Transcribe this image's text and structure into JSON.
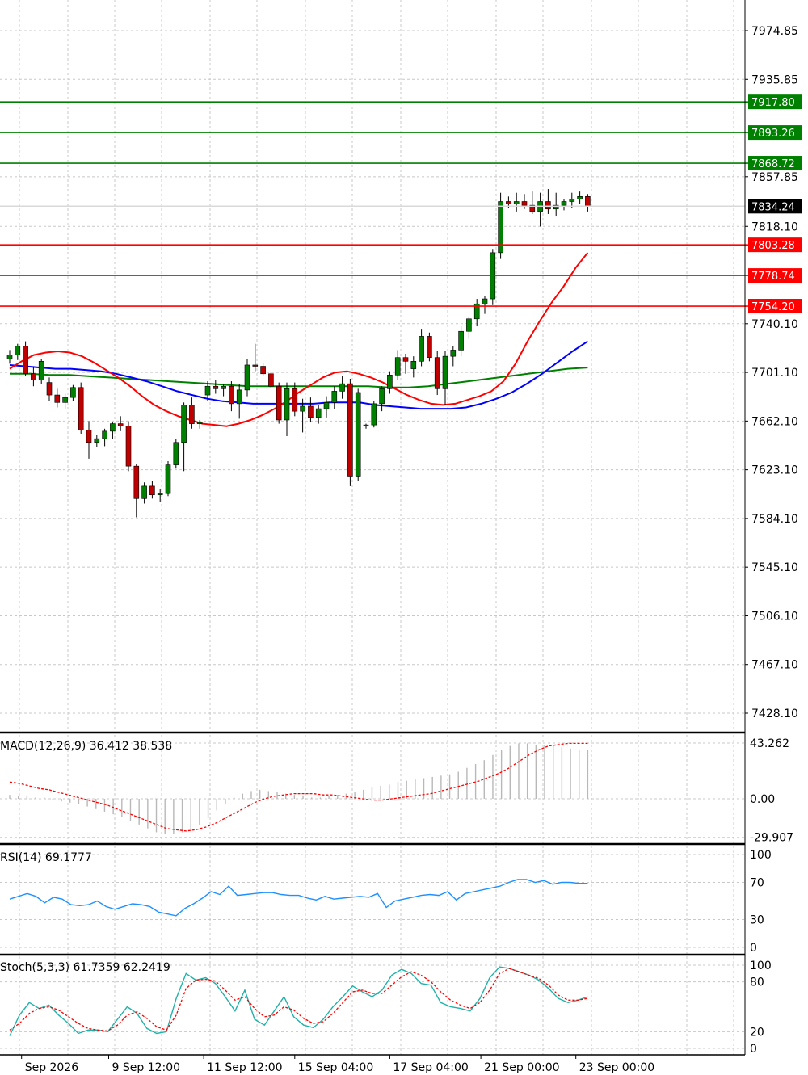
{
  "chart_data": {
    "type": "candlestick",
    "price_axis": {
      "ylim": [
        7405,
        8000
      ],
      "tick_labels": [
        "7974.85",
        "7935.85",
        "7857.85",
        "7818.10",
        "7740.10",
        "7701.10",
        "7662.10",
        "7623.10",
        "7584.10",
        "7545.10",
        "7506.10",
        "7467.10",
        "7428.10"
      ],
      "tick_values": [
        7974.85,
        7935.85,
        7857.85,
        7818.1,
        7740.1,
        7701.1,
        7662.1,
        7623.1,
        7584.1,
        7545.1,
        7506.1,
        7467.1,
        7428.1
      ]
    },
    "time_axis": {
      "labels": [
        "Sep 2026",
        "9 Sep 12:00",
        "11 Sep 12:00",
        "15 Sep 04:00",
        "17 Sep 04:00",
        "21 Sep 00:00",
        "23 Sep 00:00"
      ],
      "label_bar_index": [
        1.5,
        12.5,
        24.5,
        36,
        48,
        59.5,
        71.5
      ]
    },
    "current_price": {
      "value": 7834.24,
      "label": "7834.24",
      "color": "#000000"
    },
    "resistance_levels": [
      {
        "value": 7917.8,
        "label": "7917.80",
        "color": "#008000"
      },
      {
        "value": 7893.26,
        "label": "7893.26",
        "color": "#008000"
      },
      {
        "value": 7868.72,
        "label": "7868.72",
        "color": "#008000"
      }
    ],
    "support_levels": [
      {
        "value": 7803.28,
        "label": "7803.28",
        "color": "#ff0000"
      },
      {
        "value": 7778.74,
        "label": "7778.74",
        "color": "#ff0000"
      },
      {
        "value": 7754.2,
        "label": "7754.20",
        "color": "#ff0000"
      }
    ],
    "candles": [
      [
        7712,
        7719,
        7708,
        7715
      ],
      [
        7715,
        7724,
        7711,
        7722
      ],
      [
        7722,
        7726,
        7698,
        7700
      ],
      [
        7700,
        7706,
        7690,
        7695
      ],
      [
        7695,
        7712,
        7692,
        7710
      ],
      [
        7693,
        7697,
        7678,
        7683
      ],
      [
        7683,
        7688,
        7673,
        7677
      ],
      [
        7677,
        7684,
        7672,
        7681
      ],
      [
        7681,
        7691,
        7678,
        7689
      ],
      [
        7689,
        7693,
        7652,
        7655
      ],
      [
        7655,
        7662,
        7632,
        7645
      ],
      [
        7645,
        7651,
        7641,
        7648
      ],
      [
        7648,
        7656,
        7642,
        7654
      ],
      [
        7654,
        7661,
        7648,
        7660
      ],
      [
        7660,
        7666,
        7654,
        7658
      ],
      [
        7658,
        7662,
        7622,
        7626
      ],
      [
        7626,
        7628,
        7585,
        7600
      ],
      [
        7600,
        7613,
        7596,
        7610
      ],
      [
        7610,
        7614,
        7600,
        7603
      ],
      [
        7603,
        7608,
        7597,
        7604
      ],
      [
        7604,
        7630,
        7602,
        7627
      ],
      [
        7627,
        7648,
        7624,
        7645
      ],
      [
        7645,
        7677,
        7622,
        7675
      ],
      [
        7675,
        7681,
        7656,
        7660
      ],
      [
        7660,
        7663,
        7656,
        7661
      ],
      [
        7683,
        7694,
        7678,
        7690
      ],
      [
        7690,
        7695,
        7684,
        7688
      ],
      [
        7688,
        7692,
        7682,
        7690
      ],
      [
        7690,
        7694,
        7670,
        7676
      ],
      [
        7676,
        7692,
        7664,
        7687
      ],
      [
        7687,
        7712,
        7682,
        7707
      ],
      [
        7707,
        7724,
        7702,
        7706
      ],
      [
        7706,
        7709,
        7698,
        7700
      ],
      [
        7700,
        7702,
        7688,
        7690
      ],
      [
        7690,
        7693,
        7660,
        7663
      ],
      [
        7663,
        7693,
        7650,
        7688
      ],
      [
        7688,
        7693,
        7666,
        7670
      ],
      [
        7670,
        7680,
        7653,
        7674
      ],
      [
        7674,
        7681,
        7661,
        7665
      ],
      [
        7665,
        7675,
        7660,
        7672
      ],
      [
        7672,
        7682,
        7665,
        7677
      ],
      [
        7677,
        7690,
        7672,
        7686
      ],
      [
        7686,
        7698,
        7680,
        7692
      ],
      [
        7692,
        7696,
        7610,
        7618
      ],
      [
        7618,
        7688,
        7614,
        7685
      ],
      [
        7658,
        7660,
        7656,
        7659
      ],
      [
        7659,
        7678,
        7657,
        7676
      ],
      [
        7676,
        7690,
        7670,
        7688
      ],
      [
        7688,
        7702,
        7684,
        7699
      ],
      [
        7699,
        7719,
        7695,
        7713
      ],
      [
        7713,
        7716,
        7700,
        7710
      ],
      [
        7704,
        7714,
        7697,
        7710
      ],
      [
        7710,
        7736,
        7706,
        7730
      ],
      [
        7730,
        7733,
        7710,
        7713
      ],
      [
        7713,
        7718,
        7683,
        7688
      ],
      [
        7688,
        7718,
        7675,
        7714
      ],
      [
        7714,
        7722,
        7706,
        7719
      ],
      [
        7719,
        7738,
        7714,
        7734
      ],
      [
        7734,
        7746,
        7728,
        7744
      ],
      [
        7744,
        7760,
        7738,
        7756
      ],
      [
        7756,
        7762,
        7748,
        7760
      ],
      [
        7760,
        7800,
        7755,
        7797
      ],
      [
        7797,
        7845,
        7792,
        7838
      ],
      [
        7838,
        7842,
        7833,
        7836
      ],
      [
        7836,
        7845,
        7830,
        7838
      ],
      [
        7838,
        7844,
        7832,
        7835
      ],
      [
        7835,
        7846,
        7828,
        7830
      ],
      [
        7830,
        7845,
        7818,
        7838
      ],
      [
        7838,
        7848,
        7828,
        7832
      ],
      [
        7832,
        7845,
        7826,
        7835
      ],
      [
        7835,
        7840,
        7831,
        7838
      ],
      [
        7838,
        7845,
        7833,
        7840
      ],
      [
        7840,
        7846,
        7836,
        7842
      ],
      [
        7842,
        7844,
        7830,
        7834
      ]
    ],
    "ma_fast": [
      7704,
      7710,
      7715,
      7717,
      7718,
      7717,
      7714,
      7709,
      7703,
      7697,
      7690,
      7682,
      7675,
      7670,
      7666,
      7663,
      7660,
      7659,
      7658,
      7660,
      7663,
      7667,
      7672,
      7678,
      7685,
      7691,
      7697,
      7701,
      7702,
      7700,
      7697,
      7693,
      7688,
      7683,
      7679,
      7676,
      7675,
      7676,
      7679,
      7682,
      7686,
      7694,
      7708,
      7726,
      7742,
      7757,
      7770,
      7785,
      7797
    ],
    "ma_mid": [
      7707,
      7706,
      7705,
      7704,
      7704,
      7703,
      7702,
      7700,
      7697,
      7694,
      7690,
      7686,
      7683,
      7680,
      7678,
      7677,
      7676,
      7676,
      7676,
      7676,
      7676,
      7677,
      7677,
      7677,
      7675,
      7674,
      7673,
      7672,
      7672,
      7672,
      7673,
      7676,
      7680,
      7685,
      7692,
      7700,
      7709,
      7718,
      7726
    ],
    "ma_slow": [
      7700,
      7700,
      7699,
      7699,
      7698,
      7697,
      7696,
      7695,
      7694,
      7693,
      7692,
      7691,
      7690,
      7690,
      7690,
      7690,
      7690,
      7690,
      7690,
      7689,
      7689,
      7690,
      7692,
      7694,
      7696,
      7698,
      7700,
      7702,
      7704,
      7705
    ],
    "macd": {
      "title": "MACD(12,26,9) 36.412 38.538",
      "axis_labels": [
        "43.262",
        "0.00",
        "-29.907"
      ],
      "axis_values": [
        43.262,
        0,
        -29.907
      ],
      "histogram": [
        3,
        2,
        2,
        1,
        1,
        -1,
        -2,
        -3,
        -4,
        -6,
        -8,
        -10,
        -12,
        -14,
        -17,
        -20,
        -23,
        -26,
        -27,
        -27,
        -26,
        -24,
        -20,
        -15,
        -9,
        -4,
        1,
        4,
        6,
        7,
        6,
        5,
        4,
        3,
        2,
        1,
        1,
        2,
        3,
        4,
        5,
        7,
        9,
        10,
        11,
        13,
        14,
        15,
        16,
        17,
        18,
        19,
        21,
        24,
        27,
        30,
        34,
        38,
        41,
        43,
        43,
        42,
        42,
        41,
        40,
        39,
        38,
        38
      ],
      "signal": [
        13,
        12,
        10,
        8,
        7,
        5,
        3,
        1,
        -1,
        -3,
        -5,
        -8,
        -11,
        -14,
        -17,
        -20,
        -23,
        -24,
        -25,
        -24,
        -22,
        -19,
        -15,
        -11,
        -7,
        -3,
        0,
        2,
        3,
        4,
        4,
        4,
        3,
        3,
        2,
        1,
        0,
        -1,
        -1,
        0,
        1,
        2,
        3,
        4,
        6,
        8,
        10,
        12,
        14,
        17,
        20,
        24,
        29,
        34,
        38,
        41,
        42,
        43,
        43,
        43
      ]
    },
    "rsi": {
      "title": "RSI(14) 69.1777",
      "axis_labels": [
        "100",
        "70",
        "30",
        "0"
      ],
      "axis_values": [
        100,
        70,
        30,
        0
      ],
      "values": [
        52,
        55,
        58,
        55,
        48,
        54,
        52,
        46,
        45,
        46,
        50,
        44,
        41,
        44,
        47,
        46,
        44,
        38,
        36,
        34,
        42,
        47,
        53,
        60,
        57,
        66,
        56,
        57,
        58,
        59,
        59,
        57,
        56,
        56,
        53,
        51,
        55,
        52,
        53,
        54,
        55,
        54,
        58,
        43,
        50,
        52,
        54,
        56,
        57,
        56,
        60,
        51,
        58,
        60,
        62,
        64,
        66,
        70,
        73,
        73,
        70,
        72,
        68,
        70,
        70,
        69,
        69
      ]
    },
    "stoch": {
      "title": "Stoch(5,3,3) 61.7359 62.2419",
      "axis_labels": [
        "100",
        "80",
        "20",
        "0"
      ],
      "axis_values": [
        100,
        80,
        20,
        0
      ],
      "k": [
        15,
        40,
        55,
        48,
        52,
        40,
        30,
        18,
        22,
        22,
        20,
        35,
        50,
        42,
        24,
        18,
        20,
        60,
        90,
        82,
        85,
        78,
        62,
        45,
        70,
        35,
        28,
        45,
        62,
        38,
        28,
        25,
        35,
        50,
        62,
        75,
        68,
        62,
        70,
        88,
        95,
        90,
        78,
        76,
        55,
        50,
        48,
        45,
        60,
        85,
        98,
        96,
        92,
        88,
        82,
        72,
        60,
        55,
        58,
        62
      ],
      "d": [
        22,
        30,
        42,
        48,
        50,
        46,
        38,
        30,
        24,
        22,
        21,
        28,
        40,
        44,
        36,
        26,
        22,
        40,
        72,
        82,
        83,
        81,
        70,
        58,
        62,
        48,
        38,
        40,
        50,
        46,
        36,
        30,
        32,
        42,
        55,
        68,
        70,
        66,
        66,
        76,
        86,
        92,
        88,
        80,
        68,
        58,
        52,
        48,
        55,
        70,
        90,
        96,
        92,
        88,
        84,
        76,
        64,
        58,
        58,
        60
      ]
    }
  }
}
